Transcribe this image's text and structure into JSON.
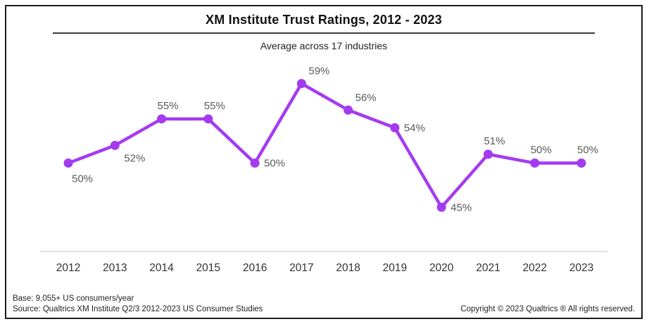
{
  "header": {
    "title": "XM Institute Trust Ratings, 2012 - 2023",
    "subtitle": "Average across 17 industries"
  },
  "chart_data": {
    "type": "line",
    "title": "XM Institute Trust Ratings, 2012 - 2023",
    "subtitle": "Average across 17 industries",
    "categories": [
      "2012",
      "2013",
      "2014",
      "2015",
      "2016",
      "2017",
      "2018",
      "2019",
      "2020",
      "2021",
      "2022",
      "2023"
    ],
    "values": [
      50,
      52,
      55,
      55,
      50,
      59,
      56,
      54,
      45,
      51,
      50,
      50
    ],
    "unit": "%",
    "xlabel": "",
    "ylabel": "",
    "ylim": [
      40,
      62
    ],
    "grid": false,
    "legend": "none",
    "line_color": "#a43bf0",
    "marker_color": "#a43bf0",
    "data_label_color": "#595959",
    "axis_line_color": "#d9d9d9",
    "tick_label_color": "#333333",
    "label_positions": [
      "below",
      "below-right",
      "above",
      "above",
      "right",
      "above-right",
      "above-right",
      "right",
      "right",
      "above",
      "above",
      "above"
    ]
  },
  "footer": {
    "base_note": "Base: 9,055+ US consumers/year",
    "source_note": "Source: Qualtrics XM Institute Q2/3 2012-2023 US Consumer Studies",
    "copyright": "Copyright © 2023 Qualtrics ® All rights reserved."
  }
}
